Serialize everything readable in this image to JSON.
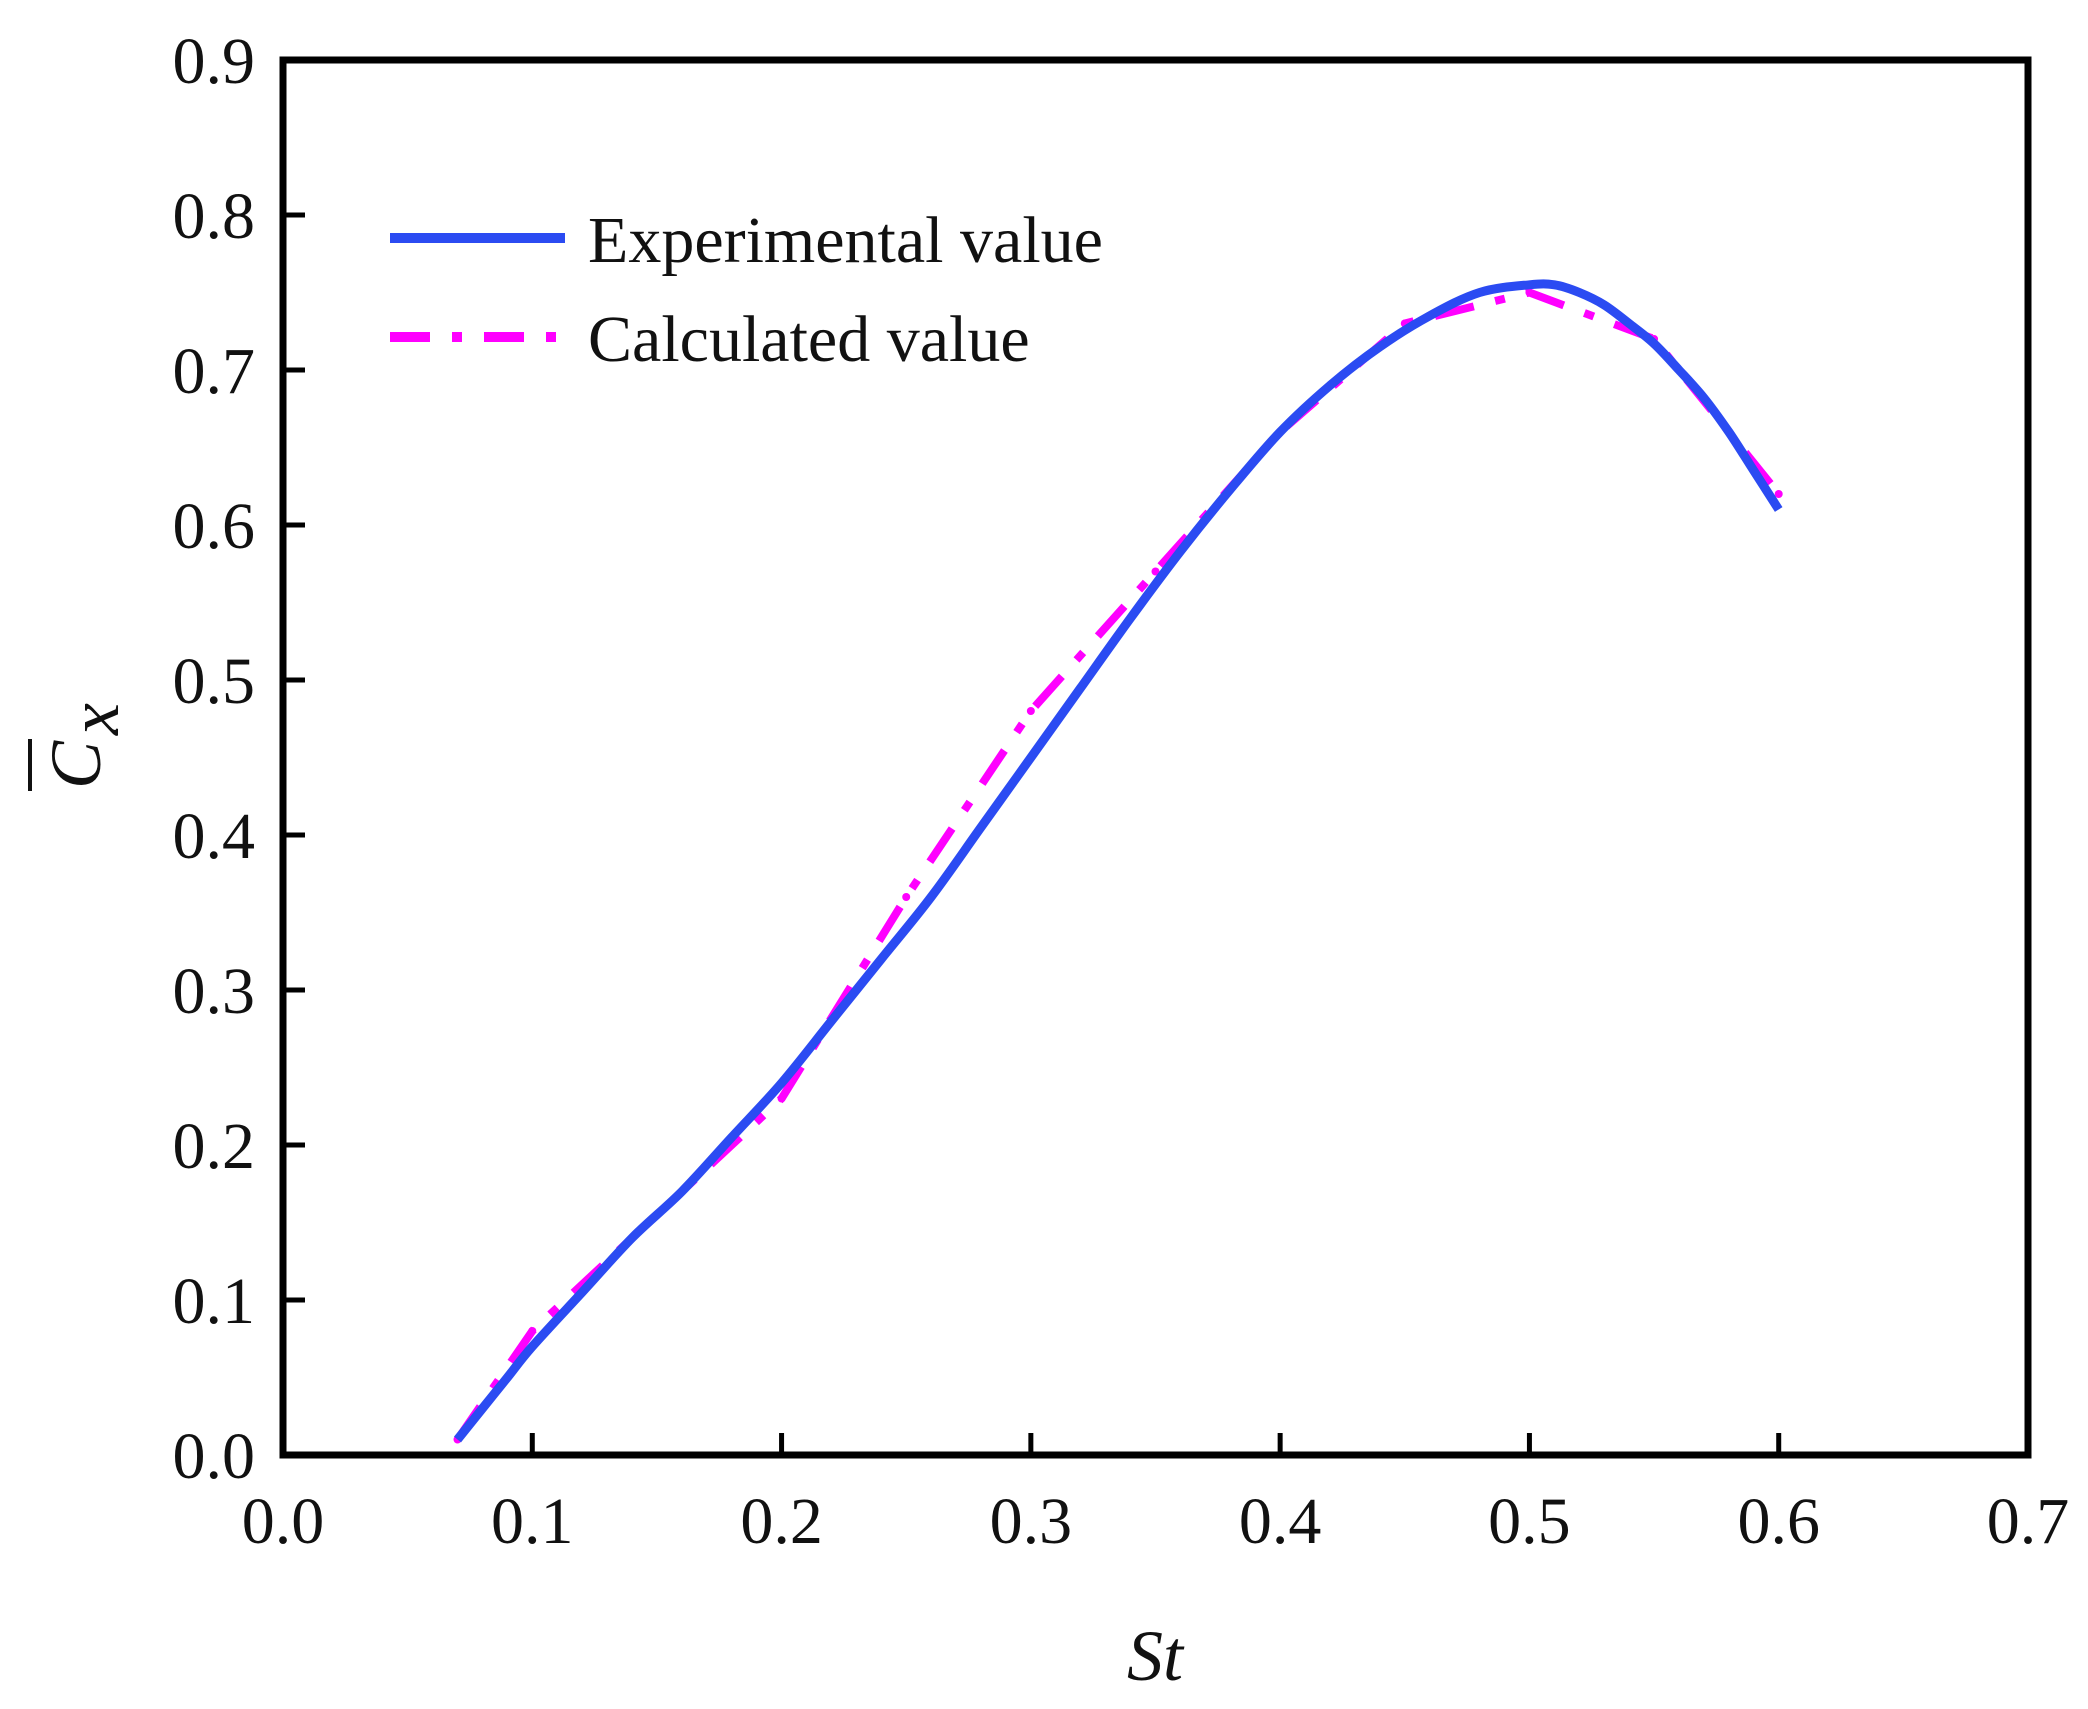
{
  "chart_data": {
    "type": "line",
    "title": "",
    "xlabel": "St",
    "ylabel": "C",
    "ylabel_subscript": "x",
    "xlim": [
      0.0,
      0.7
    ],
    "ylim": [
      0.0,
      0.9
    ],
    "x_ticks": [
      0.0,
      0.1,
      0.2,
      0.3,
      0.4,
      0.5,
      0.6,
      0.7
    ],
    "x_tick_labels": [
      "0.0",
      "0.1",
      "0.2",
      "0.3",
      "0.4",
      "0.5",
      "0.6",
      "0.7"
    ],
    "y_ticks": [
      0.0,
      0.1,
      0.2,
      0.3,
      0.4,
      0.5,
      0.6,
      0.7,
      0.8,
      0.9
    ],
    "y_tick_labels": [
      "0.0",
      "0.1",
      "0.2",
      "0.3",
      "0.4",
      "0.5",
      "0.6",
      "0.7",
      "0.8",
      "0.9"
    ],
    "grid": false,
    "legend_position": "top-left",
    "series": [
      {
        "name": "Experimental value",
        "color": "#2b4bf2",
        "style": "solid",
        "x": [
          0.07,
          0.08,
          0.09,
          0.1,
          0.12,
          0.14,
          0.16,
          0.18,
          0.2,
          0.22,
          0.24,
          0.26,
          0.28,
          0.3,
          0.32,
          0.34,
          0.36,
          0.38,
          0.4,
          0.42,
          0.44,
          0.46,
          0.48,
          0.5,
          0.51,
          0.52,
          0.53,
          0.54,
          0.55,
          0.56,
          0.57,
          0.58,
          0.59,
          0.6
        ],
        "y": [
          0.01,
          0.03,
          0.05,
          0.07,
          0.105,
          0.14,
          0.17,
          0.205,
          0.24,
          0.28,
          0.32,
          0.36,
          0.405,
          0.45,
          0.495,
          0.54,
          0.583,
          0.623,
          0.66,
          0.69,
          0.715,
          0.735,
          0.75,
          0.755,
          0.755,
          0.75,
          0.742,
          0.73,
          0.717,
          0.7,
          0.682,
          0.66,
          0.635,
          0.61
        ]
      },
      {
        "name": "Calculated value",
        "color": "#ff00ff",
        "style": "dash-dot",
        "x": [
          0.07,
          0.1,
          0.15,
          0.2,
          0.25,
          0.3,
          0.35,
          0.4,
          0.45,
          0.5,
          0.55,
          0.6
        ],
        "y": [
          0.01,
          0.08,
          0.155,
          0.23,
          0.36,
          0.48,
          0.57,
          0.66,
          0.73,
          0.75,
          0.72,
          0.62
        ]
      }
    ]
  }
}
